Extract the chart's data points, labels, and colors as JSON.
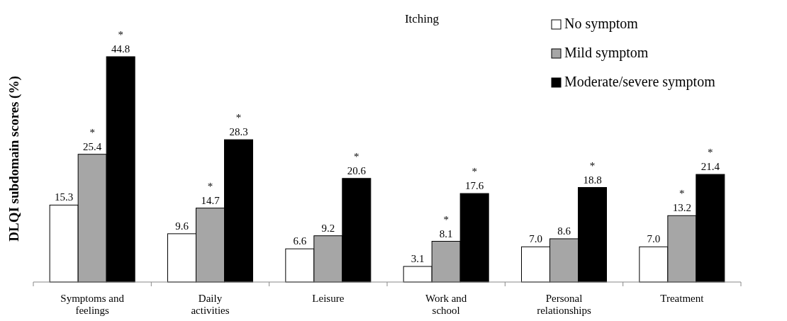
{
  "chart_data": {
    "type": "bar",
    "title": "Itching",
    "ylabel": "DLQI subdomain scores (%)",
    "categories": [
      "Symptoms and feelings",
      "Daily activities",
      "Leisure",
      "Work and school",
      "Personal relationships",
      "Treatment"
    ],
    "series": [
      {
        "name": "No symptom",
        "color": "#ffffff",
        "values": [
          15.3,
          9.6,
          6.6,
          3.1,
          7.0,
          7.0
        ],
        "value_labels": [
          "15.3",
          "9.6",
          "6.6",
          "3.1",
          "7.0",
          "7.0"
        ]
      },
      {
        "name": "Mild symptom",
        "color": "#a6a6a6",
        "values": [
          25.4,
          14.7,
          9.2,
          8.1,
          8.6,
          13.2
        ],
        "value_labels": [
          "25.4",
          "14.7",
          "9.2",
          "8.1",
          "8.6",
          "13.2"
        ]
      },
      {
        "name": "Moderate/severe symptom",
        "color": "#000000",
        "values": [
          44.8,
          28.3,
          20.6,
          17.6,
          18.8,
          21.4
        ],
        "value_labels": [
          "44.8",
          "28.3",
          "20.6",
          "17.6",
          "18.8",
          "21.4"
        ]
      }
    ],
    "legend": "top right",
    "annotations": [
      {
        "text": "*",
        "x": "Symptoms and feelings",
        "y": 25.4
      },
      "*",
      {
        "text": "*",
        "x": "Daily activities",
        "y": 14.7
      },
      "*",
      "*",
      {
        "text": "*",
        "x": "Work and school",
        "y": 8.1
      },
      "*",
      "*",
      {
        "text": "*",
        "x": "Treatment",
        "y": 13.2
      },
      "*"
    ]
  }
}
